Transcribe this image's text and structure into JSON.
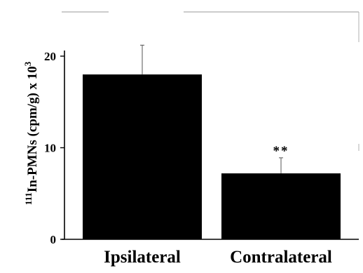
{
  "chart_data": {
    "type": "bar",
    "categories": [
      "Ipsilateral",
      "Contralateral"
    ],
    "values": [
      18.0,
      7.2
    ],
    "errors": [
      3.2,
      1.7
    ],
    "ylim": [
      0,
      20
    ],
    "yticks": [
      0,
      10,
      20
    ],
    "ylabel": {
      "superscript": "111",
      "main": "In-PMNs (cpm/g) x 10",
      "exponent": "3"
    },
    "annotations": [
      {
        "category": "Contralateral",
        "text": "**"
      }
    ],
    "colors": {
      "bar": "#000000",
      "axis": "#000000",
      "frame": "#888888"
    }
  }
}
